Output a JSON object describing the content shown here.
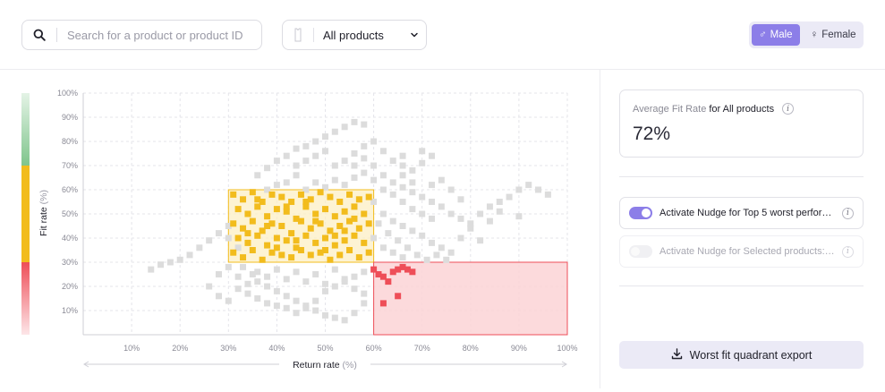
{
  "search": {
    "placeholder": "Search for a product or product ID",
    "icon": "search-icon"
  },
  "product_filter": {
    "value": "All products",
    "icon": "shirt-icon"
  },
  "gender": {
    "male_label": "Male",
    "female_label": "Female",
    "selected": "Male"
  },
  "kpi": {
    "label_muted": "Average Fit Rate",
    "label_rest": "for All products",
    "value": "72%"
  },
  "nudges": [
    {
      "label": "Activate Nudge for Top 5 worst performers",
      "enabled": true,
      "disabled": false
    },
    {
      "label": "Activate Nudge for Selected products: E...",
      "enabled": false,
      "disabled": true
    }
  ],
  "export_label": "Worst fit quadrant export",
  "colors": {
    "accent": "#8c7ee8",
    "yellow": "#f2bc1d",
    "red": "#ee4e58",
    "grey": "#dcdcdc",
    "green": "#7fc58c"
  },
  "chart_data": {
    "type": "scatter",
    "xlabel": "Return rate",
    "xunit": "(%)",
    "ylabel": "Fit rate",
    "yunit": "(%)",
    "xlim": [
      0,
      100
    ],
    "ylim": [
      0,
      100
    ],
    "x_ticks": [
      "10%",
      "20%",
      "30%",
      "40%",
      "50%",
      "60%",
      "70%",
      "80%",
      "90%",
      "100%"
    ],
    "y_ticks": [
      "10%",
      "20%",
      "30%",
      "40%",
      "50%",
      "60%",
      "70%",
      "80%",
      "90%",
      "100%"
    ],
    "grid": true,
    "highlight_regions": [
      {
        "name": "yellow",
        "x": [
          30,
          60
        ],
        "y": [
          30,
          60
        ]
      },
      {
        "name": "red",
        "x": [
          60,
          100
        ],
        "y": [
          0,
          30
        ]
      }
    ],
    "series": [
      {
        "color": "#f2bc1d",
        "points": [
          [
            31,
            58
          ],
          [
            33,
            56
          ],
          [
            35,
            59
          ],
          [
            37,
            55
          ],
          [
            39,
            58
          ],
          [
            41,
            57
          ],
          [
            43,
            55
          ],
          [
            45,
            58
          ],
          [
            47,
            56
          ],
          [
            49,
            59
          ],
          [
            51,
            57
          ],
          [
            53,
            55
          ],
          [
            55,
            58
          ],
          [
            57,
            56
          ],
          [
            59,
            57
          ],
          [
            32,
            52
          ],
          [
            34,
            50
          ],
          [
            36,
            53
          ],
          [
            38,
            49
          ],
          [
            40,
            52
          ],
          [
            42,
            51
          ],
          [
            44,
            48
          ],
          [
            46,
            53
          ],
          [
            48,
            50
          ],
          [
            50,
            52
          ],
          [
            52,
            49
          ],
          [
            54,
            51
          ],
          [
            56,
            53
          ],
          [
            58,
            50
          ],
          [
            31,
            46
          ],
          [
            33,
            44
          ],
          [
            35,
            47
          ],
          [
            37,
            43
          ],
          [
            39,
            46
          ],
          [
            41,
            45
          ],
          [
            43,
            42
          ],
          [
            45,
            47
          ],
          [
            47,
            44
          ],
          [
            49,
            46
          ],
          [
            51,
            43
          ],
          [
            53,
            45
          ],
          [
            55,
            47
          ],
          [
            57,
            44
          ],
          [
            59,
            46
          ],
          [
            32,
            40
          ],
          [
            34,
            38
          ],
          [
            36,
            41
          ],
          [
            38,
            37
          ],
          [
            40,
            40
          ],
          [
            42,
            39
          ],
          [
            44,
            36
          ],
          [
            46,
            41
          ],
          [
            48,
            38
          ],
          [
            50,
            40
          ],
          [
            52,
            37
          ],
          [
            54,
            39
          ],
          [
            56,
            41
          ],
          [
            58,
            38
          ],
          [
            31,
            34
          ],
          [
            33,
            32
          ],
          [
            35,
            35
          ],
          [
            37,
            31
          ],
          [
            39,
            34
          ],
          [
            41,
            33
          ],
          [
            43,
            32
          ],
          [
            45,
            35
          ],
          [
            47,
            33
          ],
          [
            49,
            34
          ],
          [
            51,
            31
          ],
          [
            53,
            33
          ],
          [
            55,
            35
          ],
          [
            57,
            32
          ],
          [
            59,
            34
          ],
          [
            36,
            56
          ],
          [
            42,
            53
          ],
          [
            48,
            47
          ],
          [
            54,
            43
          ],
          [
            38,
            45
          ],
          [
            44,
            39
          ],
          [
            50,
            35
          ],
          [
            56,
            48
          ],
          [
            34,
            42
          ],
          [
            46,
            55
          ],
          [
            52,
            41
          ],
          [
            40,
            36
          ]
        ]
      },
      {
        "color": "#ee4e58",
        "points": [
          [
            60,
            27
          ],
          [
            61,
            25
          ],
          [
            62,
            24
          ],
          [
            63,
            22
          ],
          [
            64,
            26
          ],
          [
            65,
            27
          ],
          [
            66,
            28
          ],
          [
            67,
            27
          ],
          [
            68,
            26
          ],
          [
            62,
            13
          ],
          [
            65,
            16
          ]
        ]
      },
      {
        "color": "#dcdcdc",
        "points": [
          [
            14,
            27
          ],
          [
            16,
            29
          ],
          [
            18,
            30
          ],
          [
            20,
            31
          ],
          [
            22,
            33
          ],
          [
            24,
            36
          ],
          [
            26,
            39
          ],
          [
            28,
            42
          ],
          [
            30,
            45
          ],
          [
            30,
            40
          ],
          [
            32,
            36
          ],
          [
            33,
            28
          ],
          [
            35,
            25
          ],
          [
            36,
            22
          ],
          [
            38,
            20
          ],
          [
            40,
            18
          ],
          [
            42,
            16
          ],
          [
            44,
            14
          ],
          [
            46,
            12
          ],
          [
            48,
            10
          ],
          [
            50,
            8
          ],
          [
            52,
            7
          ],
          [
            54,
            6
          ],
          [
            56,
            9
          ],
          [
            58,
            13
          ],
          [
            26,
            20
          ],
          [
            28,
            16
          ],
          [
            30,
            14
          ],
          [
            32,
            19
          ],
          [
            34,
            17
          ],
          [
            36,
            15
          ],
          [
            38,
            13
          ],
          [
            40,
            12
          ],
          [
            42,
            11
          ],
          [
            44,
            9
          ],
          [
            46,
            11
          ],
          [
            48,
            14
          ],
          [
            50,
            18
          ],
          [
            52,
            20
          ],
          [
            54,
            22
          ],
          [
            56,
            24
          ],
          [
            58,
            26
          ],
          [
            28,
            25
          ],
          [
            30,
            28
          ],
          [
            32,
            24
          ],
          [
            34,
            21
          ],
          [
            36,
            26
          ],
          [
            38,
            24
          ],
          [
            40,
            27
          ],
          [
            42,
            23
          ],
          [
            44,
            26
          ],
          [
            46,
            22
          ],
          [
            48,
            25
          ],
          [
            50,
            21
          ],
          [
            52,
            27
          ],
          [
            54,
            23
          ],
          [
            56,
            19
          ],
          [
            58,
            17
          ],
          [
            36,
            66
          ],
          [
            38,
            69
          ],
          [
            40,
            72
          ],
          [
            42,
            74
          ],
          [
            44,
            77
          ],
          [
            46,
            78
          ],
          [
            48,
            80
          ],
          [
            50,
            82
          ],
          [
            52,
            84
          ],
          [
            54,
            86
          ],
          [
            56,
            88
          ],
          [
            58,
            87
          ],
          [
            44,
            70
          ],
          [
            46,
            72
          ],
          [
            48,
            74
          ],
          [
            50,
            76
          ],
          [
            52,
            70
          ],
          [
            54,
            72
          ],
          [
            56,
            75
          ],
          [
            58,
            78
          ],
          [
            60,
            80
          ],
          [
            62,
            76
          ],
          [
            64,
            72
          ],
          [
            66,
            70
          ],
          [
            68,
            68
          ],
          [
            70,
            71
          ],
          [
            72,
            74
          ],
          [
            70,
            76
          ],
          [
            66,
            74
          ],
          [
            60,
            70
          ],
          [
            62,
            66
          ],
          [
            64,
            63
          ],
          [
            66,
            61
          ],
          [
            68,
            59
          ],
          [
            70,
            57
          ],
          [
            72,
            55
          ],
          [
            74,
            53
          ],
          [
            76,
            50
          ],
          [
            78,
            48
          ],
          [
            80,
            46
          ],
          [
            82,
            50
          ],
          [
            84,
            53
          ],
          [
            86,
            55
          ],
          [
            88,
            57
          ],
          [
            90,
            60
          ],
          [
            92,
            62
          ],
          [
            94,
            60
          ],
          [
            96,
            58
          ],
          [
            60,
            64
          ],
          [
            62,
            60
          ],
          [
            64,
            58
          ],
          [
            66,
            55
          ],
          [
            68,
            52
          ],
          [
            70,
            50
          ],
          [
            72,
            48
          ],
          [
            62,
            50
          ],
          [
            64,
            47
          ],
          [
            66,
            45
          ],
          [
            68,
            43
          ],
          [
            70,
            41
          ],
          [
            72,
            38
          ],
          [
            74,
            36
          ],
          [
            76,
            34
          ],
          [
            78,
            40
          ],
          [
            80,
            44
          ],
          [
            84,
            47
          ],
          [
            60,
            55
          ],
          [
            61,
            46
          ],
          [
            63,
            42
          ],
          [
            65,
            39
          ],
          [
            67,
            36
          ],
          [
            69,
            33
          ],
          [
            71,
            31
          ],
          [
            73,
            33
          ],
          [
            75,
            31
          ],
          [
            64,
            34
          ],
          [
            66,
            32
          ],
          [
            62,
            36
          ],
          [
            60,
            40
          ],
          [
            82,
            39
          ],
          [
            86,
            51
          ],
          [
            90,
            49
          ],
          [
            66,
            66
          ],
          [
            68,
            63
          ],
          [
            72,
            62
          ],
          [
            74,
            64
          ],
          [
            76,
            60
          ],
          [
            78,
            56
          ],
          [
            46,
            60
          ],
          [
            48,
            63
          ],
          [
            50,
            61
          ],
          [
            52,
            64
          ],
          [
            54,
            62
          ],
          [
            56,
            65
          ],
          [
            58,
            67
          ],
          [
            42,
            63
          ],
          [
            44,
            66
          ],
          [
            40,
            62
          ],
          [
            38,
            60
          ],
          [
            56,
            70
          ],
          [
            58,
            73
          ]
        ]
      }
    ]
  }
}
